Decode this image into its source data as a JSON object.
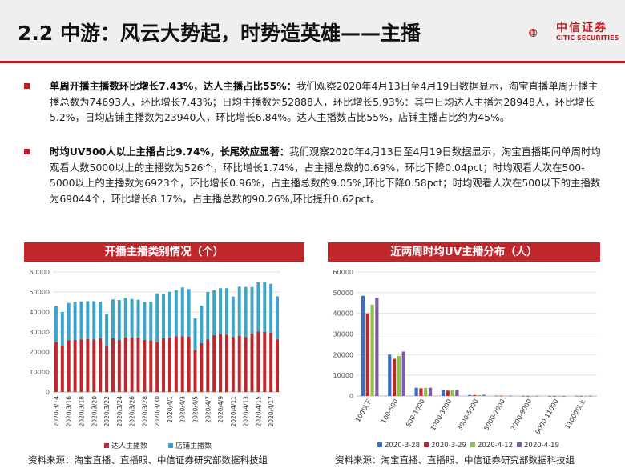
{
  "header": {
    "title": "2.2 中游：风云大势起，时势造英雄——主播",
    "logo_text": "中信证券",
    "logo_subtext": "CITIC SECURITIES"
  },
  "bullets": [
    {
      "bold": "单周开播主播数环比增长7.43%，达人主播占比55%：",
      "text": "我们观察2020年4月13日至4月19日数据显示，淘宝直播单周开播主播总数为74693人，环比增长7.43%；日均主播数为52888人，环比增长5.93%：其中日均达人主播为28948人，环比增长5.2%，日均店铺主播数为23940人，环比增长6.84%。达人主播数占比55%，店铺主播占比约为45%。"
    },
    {
      "bold": "时均UV500人以上主播占比9.74%，长尾效应显著：",
      "text": "我们观察2020年4月13日至4月19日数据显示，淘宝直播期间单周时均观看人数5000以上的主播数为526个，环比增长1.74%，占主播总数的0.69%，环比下降0.04pct；时均观看人次在500-5000以上的主播数为6923个，环比增长0.96%，占主播总数的9.05%,环比下降0.58pct；时均观看人次在500以下的主播数为69044个，环比增长8.17%，占主播总数的90.26%,环比提升0.62pct。"
    }
  ],
  "left_panel": {
    "title": "开播主播类别情况（个）",
    "source": "资料来源：淘宝直播、直播眼、中信证券研究部数据科技组"
  },
  "right_panel": {
    "title": "近两周时均UV主播分布（人）",
    "source": "资料来源：淘宝直播、直播眼、中信证券研究部数据科技组"
  },
  "chart_data": [
    {
      "type": "bar",
      "stacked": true,
      "ylim": [
        0,
        60000
      ],
      "yticks": [
        0,
        10000,
        20000,
        30000,
        40000,
        50000,
        60000
      ],
      "tick_labels": [
        "2020/3/14",
        "2020/3/16",
        "2020/3/18",
        "2020/3/20",
        "2020/3/22",
        "2020/3/24",
        "2020/3/26",
        "2020/3/28",
        "2020/3/30",
        "2020/4/1",
        "2020/4/3",
        "2020/4/5",
        "2020/4/7",
        "2020/4/9",
        "2020/4/11",
        "2020/4/13",
        "2020/4/15",
        "2020/4/17"
      ],
      "categories": [
        "2020/3/14",
        "2020/3/15",
        "2020/3/16",
        "2020/3/17",
        "2020/3/18",
        "2020/3/19",
        "2020/3/20",
        "2020/3/21",
        "2020/3/22",
        "2020/3/23",
        "2020/3/24",
        "2020/3/25",
        "2020/3/26",
        "2020/3/27",
        "2020/3/28",
        "2020/3/29",
        "2020/3/30",
        "2020/3/31",
        "2020/4/1",
        "2020/4/2",
        "2020/4/3",
        "2020/4/4",
        "2020/4/5",
        "2020/4/6",
        "2020/4/7",
        "2020/4/8",
        "2020/4/9",
        "2020/4/10",
        "2020/4/11",
        "2020/4/12",
        "2020/4/13",
        "2020/4/14",
        "2020/4/15",
        "2020/4/16",
        "2020/4/17",
        "2020/4/18"
      ],
      "series": [
        {
          "name": "达人主播数",
          "color": "#c0272d",
          "values": [
            24800,
            23200,
            25800,
            26000,
            26300,
            26400,
            26200,
            26900,
            23000,
            26800,
            26000,
            27200,
            27200,
            27300,
            26000,
            25900,
            24800,
            26800,
            27000,
            27800,
            27800,
            27700,
            20800,
            24500,
            26200,
            28500,
            28800,
            28600,
            27400,
            28000,
            27400,
            29300,
            30200,
            30100,
            29700,
            26200
          ]
        },
        {
          "name": "店铺主播数",
          "color": "#3ba5c9",
          "values": [
            18200,
            16800,
            18700,
            19100,
            19000,
            19000,
            19200,
            18200,
            16000,
            19500,
            20000,
            19800,
            19300,
            18800,
            19000,
            19200,
            24500,
            22100,
            23100,
            23100,
            24500,
            23800,
            16000,
            18700,
            23800,
            22400,
            23100,
            23300,
            20300,
            24700,
            25100,
            23200,
            24600,
            24900,
            24400,
            21600
          ]
        }
      ],
      "legend_position": "bottom"
    },
    {
      "type": "bar",
      "ylim": [
        0,
        60000
      ],
      "yticks": [
        0,
        10000,
        20000,
        30000,
        40000,
        50000,
        60000
      ],
      "categories": [
        "100以下",
        "100-500",
        "500-1000",
        "1000-3000",
        "3000-5000",
        "5000-7000",
        "7000-9000",
        "9000-11000",
        "11000以上"
      ],
      "series": [
        {
          "name": "2020-3-28",
          "color": "#3a6fc4",
          "values": [
            48500,
            20000,
            4000,
            2800,
            500,
            180,
            80,
            40,
            90
          ]
        },
        {
          "name": "2020-3-29",
          "color": "#c0272d",
          "values": [
            40000,
            18000,
            3700,
            2600,
            450,
            160,
            70,
            35,
            80
          ]
        },
        {
          "name": "2020-4-12",
          "color": "#8fc04a",
          "values": [
            44200,
            19400,
            3900,
            2700,
            480,
            170,
            75,
            38,
            85
          ]
        },
        {
          "name": "2020-4-19",
          "color": "#7b5ea8",
          "values": [
            47500,
            21500,
            4000,
            2900,
            520,
            190,
            85,
            42,
            95
          ]
        }
      ],
      "legend_position": "bottom"
    }
  ]
}
